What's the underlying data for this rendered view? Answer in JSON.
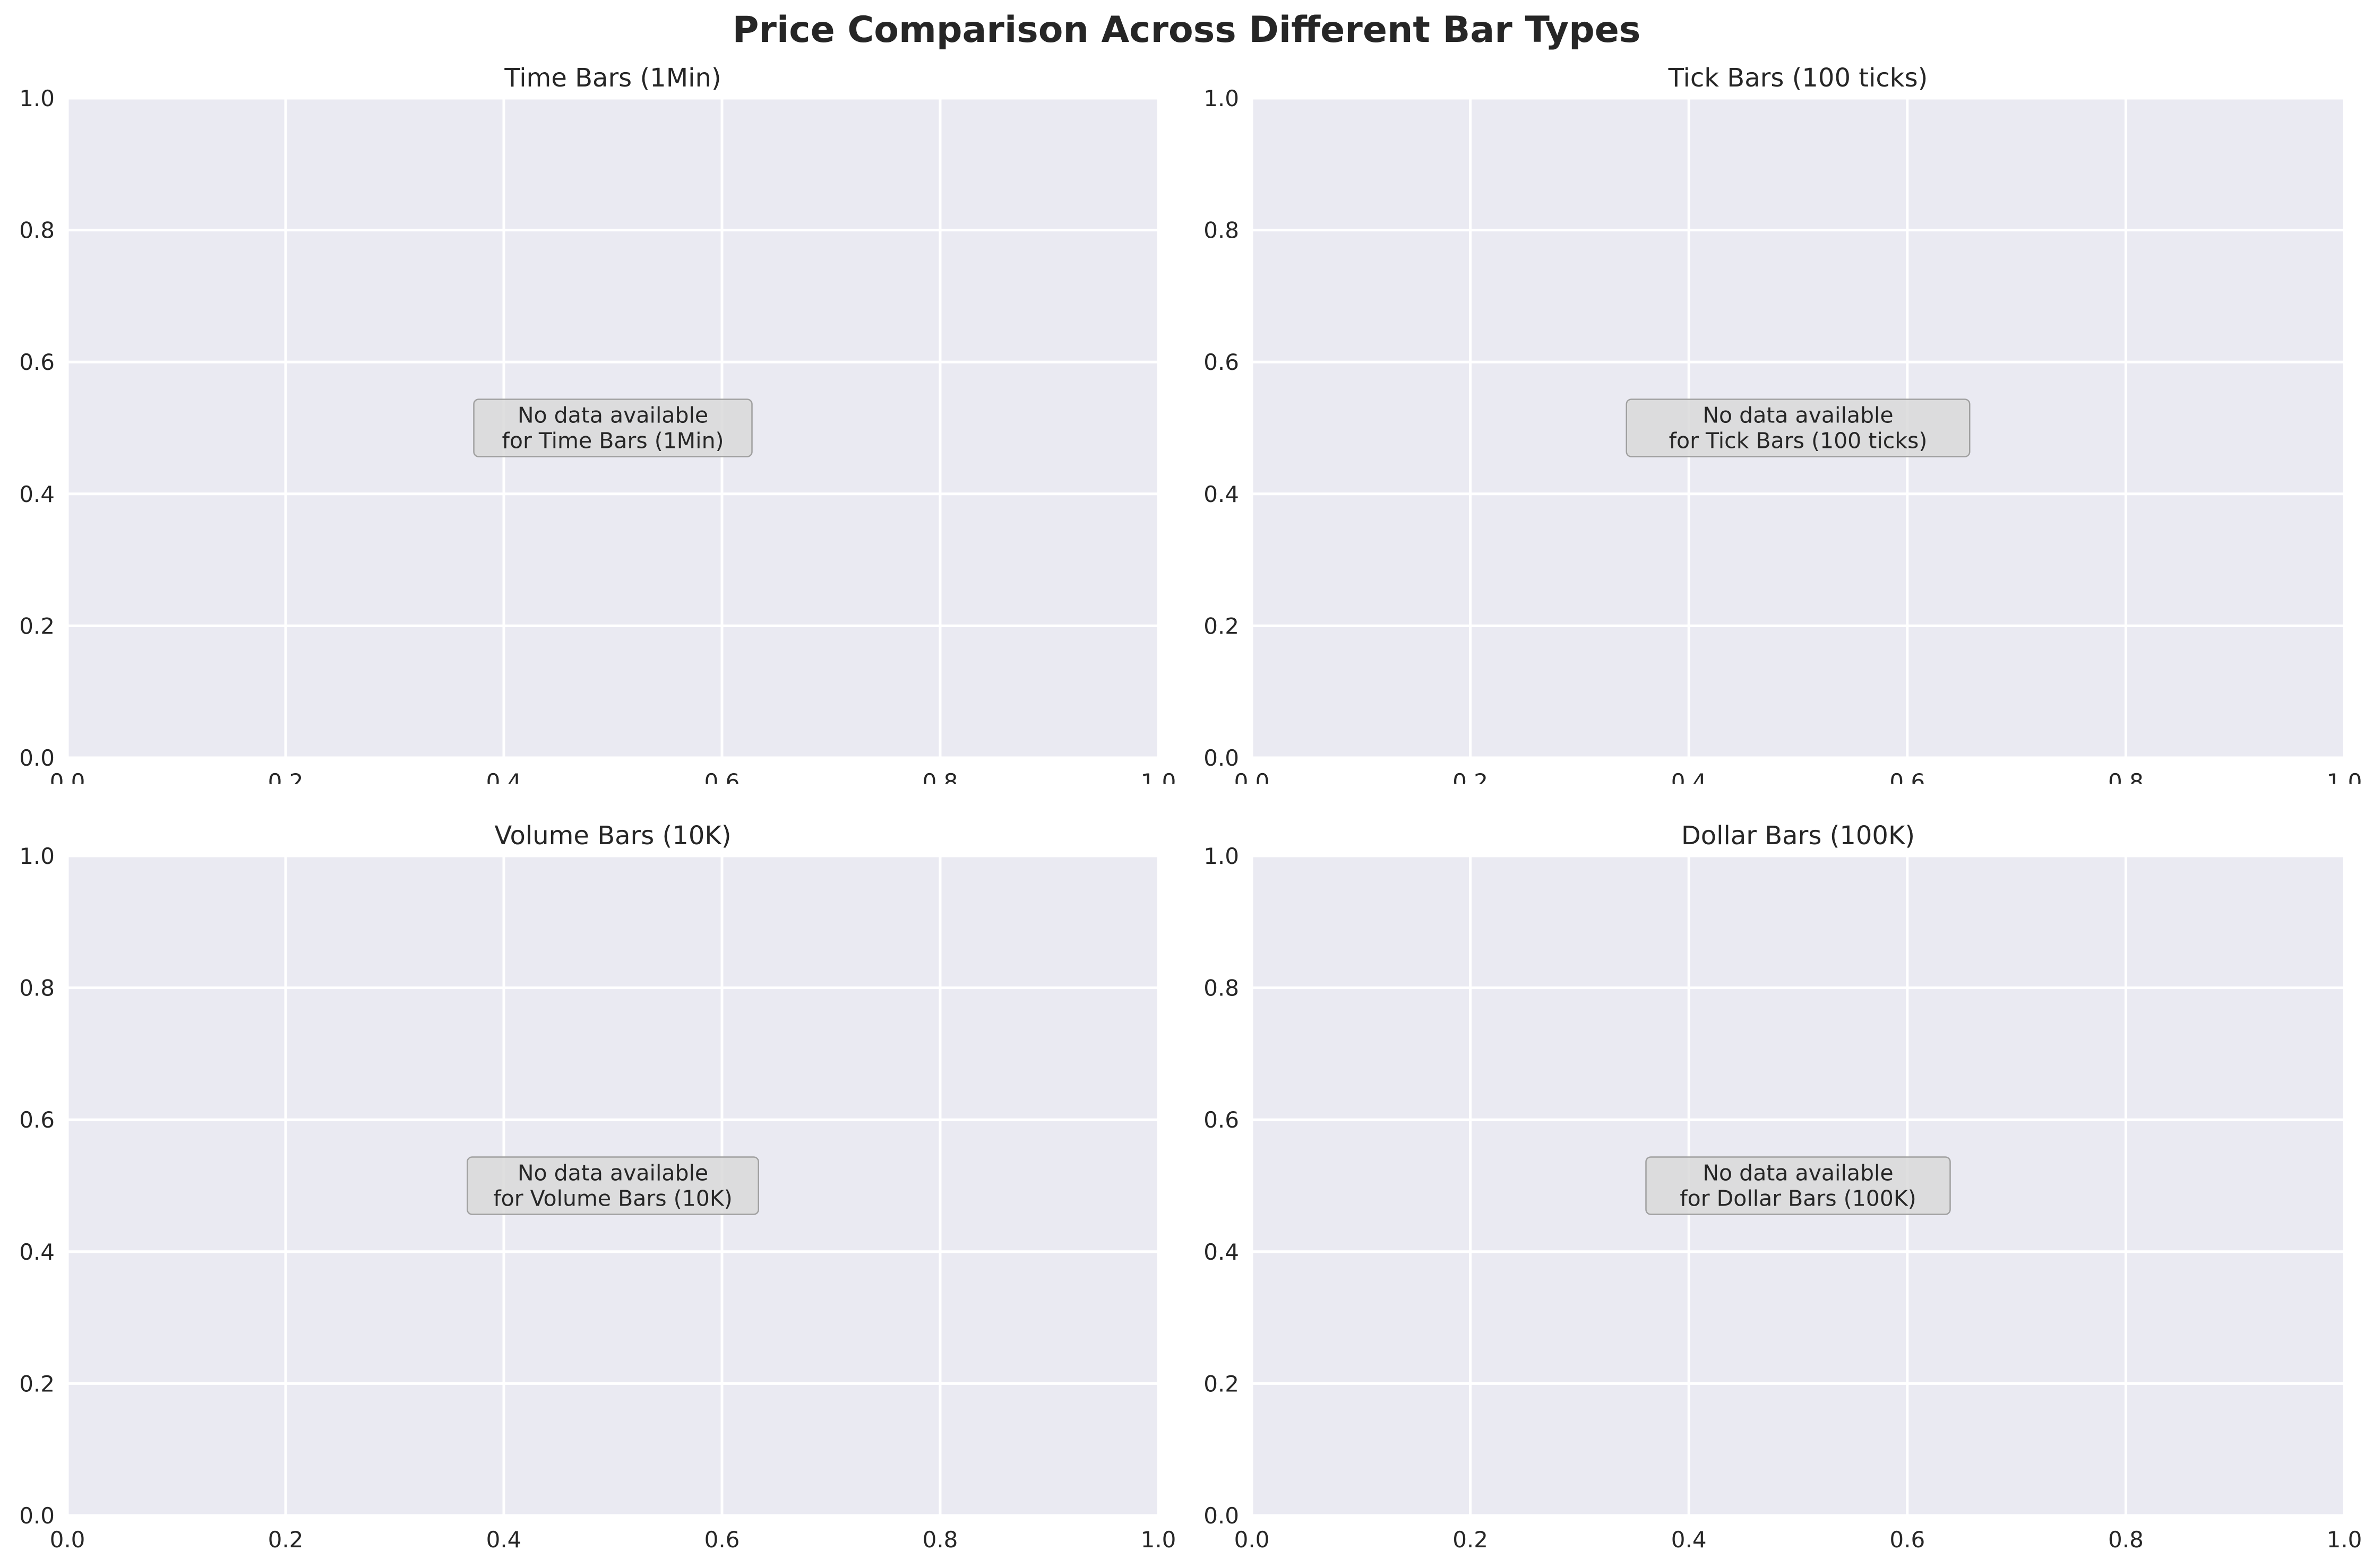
{
  "figure": {
    "title": "Price Comparison Across Different Bar Types"
  },
  "chart_data": [
    {
      "type": "line",
      "title": "Time Bars (1Min)",
      "annotation": [
        "No data available",
        "for Time Bars (1Min)"
      ],
      "xlim": [
        0,
        1
      ],
      "ylim": [
        0,
        1
      ],
      "xticks": [
        "0.0",
        "0.2",
        "0.4",
        "0.6",
        "0.8",
        "1.0"
      ],
      "yticks": [
        "0.0",
        "0.2",
        "0.4",
        "0.6",
        "0.8",
        "1.0"
      ],
      "grid": true,
      "series": []
    },
    {
      "type": "line",
      "title": "Tick Bars (100 ticks)",
      "annotation": [
        "No data available",
        "for Tick Bars (100 ticks)"
      ],
      "xlim": [
        0,
        1
      ],
      "ylim": [
        0,
        1
      ],
      "xticks": [
        "0.0",
        "0.2",
        "0.4",
        "0.6",
        "0.8",
        "1.0"
      ],
      "yticks": [
        "0.0",
        "0.2",
        "0.4",
        "0.6",
        "0.8",
        "1.0"
      ],
      "grid": true,
      "series": []
    },
    {
      "type": "line",
      "title": "Volume Bars (10K)",
      "annotation": [
        "No data available",
        "for Volume Bars (10K)"
      ],
      "xlim": [
        0,
        1
      ],
      "ylim": [
        0,
        1
      ],
      "xticks": [
        "0.0",
        "0.2",
        "0.4",
        "0.6",
        "0.8",
        "1.0"
      ],
      "yticks": [
        "0.0",
        "0.2",
        "0.4",
        "0.6",
        "0.8",
        "1.0"
      ],
      "grid": true,
      "series": []
    },
    {
      "type": "line",
      "title": "Dollar Bars (100K)",
      "annotation": [
        "No data available",
        "for Dollar Bars (100K)"
      ],
      "xlim": [
        0,
        1
      ],
      "ylim": [
        0,
        1
      ],
      "xticks": [
        "0.0",
        "0.2",
        "0.4",
        "0.6",
        "0.8",
        "1.0"
      ],
      "yticks": [
        "0.0",
        "0.2",
        "0.4",
        "0.6",
        "0.8",
        "1.0"
      ],
      "grid": true,
      "series": []
    }
  ],
  "colors": {
    "axes_background": "#eaeaf2",
    "grid": "#ffffff",
    "text": "#262626",
    "annotation_box": "#d9d9d9"
  }
}
